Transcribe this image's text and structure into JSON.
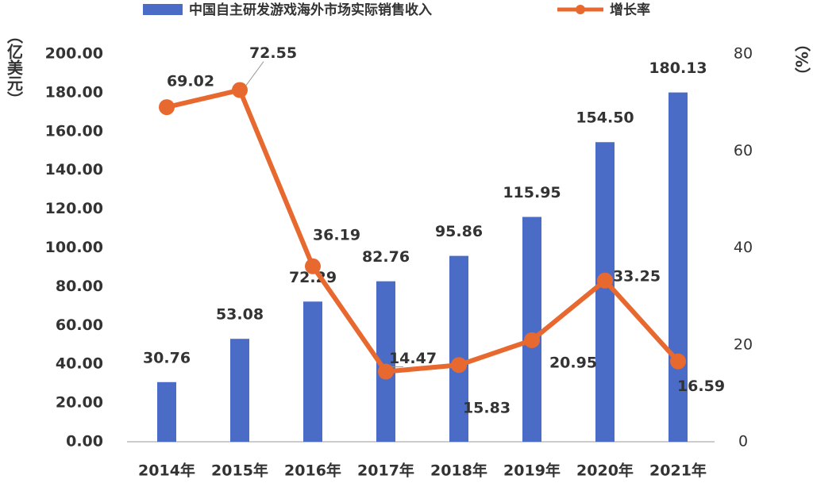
{
  "chart_data": {
    "type": "bar-line",
    "y_label": "（亿美元）",
    "y2_label": "（%）",
    "categories": [
      "2014年",
      "2015年",
      "2016年",
      "2017年",
      "2018年",
      "2019年",
      "2020年",
      "2021年"
    ],
    "series": [
      {
        "name": "中国自主研发游戏海外市场实际销售收入",
        "type": "bar",
        "color": "#4a6cc6",
        "values": [
          30.76,
          53.08,
          72.29,
          82.76,
          95.86,
          115.95,
          154.5,
          180.13
        ],
        "value_labels": [
          "30.76",
          "53.08",
          "72.29",
          "82.76",
          "95.86",
          "115.95",
          "154.50",
          "180.13"
        ]
      },
      {
        "name": "增长率",
        "type": "line",
        "color": "#e8692f",
        "axis": "y2",
        "values": [
          69.02,
          72.55,
          36.19,
          14.47,
          15.83,
          20.95,
          33.25,
          16.59
        ]
      }
    ],
    "ylim": [
      0,
      200
    ],
    "yticks": [
      {
        "value": 0,
        "label": "0.00"
      },
      {
        "value": 20,
        "label": "20.00"
      },
      {
        "value": 40,
        "label": "40.00"
      },
      {
        "value": 60,
        "label": "60.00"
      },
      {
        "value": 80,
        "label": "80.00"
      },
      {
        "value": 100,
        "label": "100.00"
      },
      {
        "value": 120,
        "label": "120.00"
      },
      {
        "value": 140,
        "label": "140.00"
      },
      {
        "value": 160,
        "label": "160.00"
      },
      {
        "value": 180,
        "label": "180.00"
      },
      {
        "value": 200,
        "label": "200.00"
      }
    ],
    "y2lim": [
      0,
      80
    ],
    "y2ticks": [
      0,
      20,
      40,
      60,
      80
    ],
    "grid": false,
    "legend": "top"
  }
}
